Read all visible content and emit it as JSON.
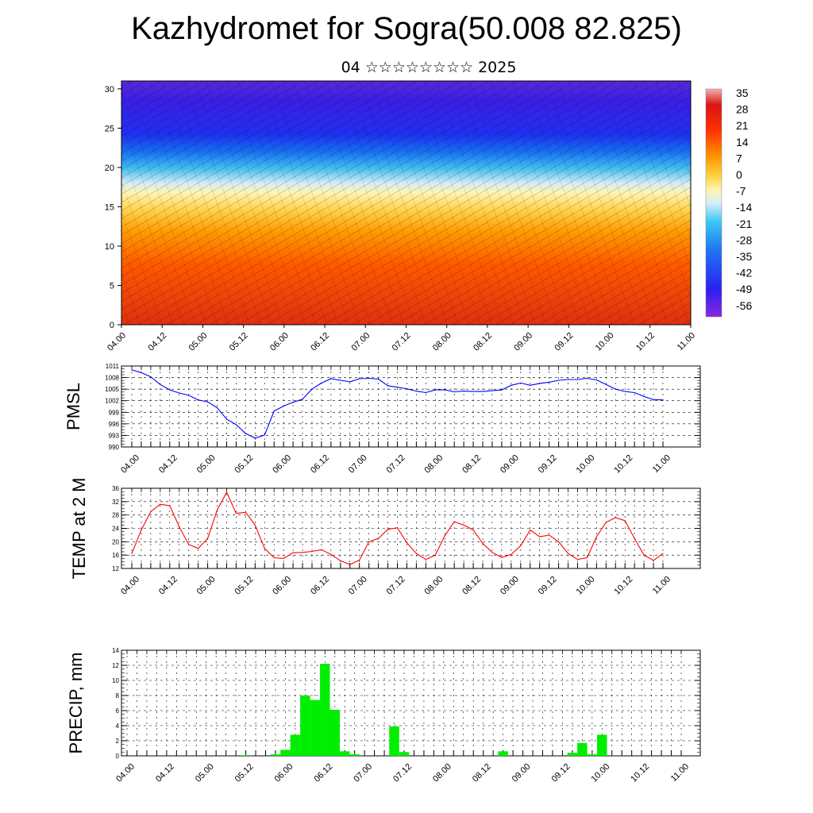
{
  "title": "Kazhydromet for Sogra(50.008 82.825)",
  "subtitle": "04 ☆☆☆☆☆☆☆☆ 2025",
  "time_labels": [
    "04.00",
    "04.12",
    "05.00",
    "05.12",
    "06.00",
    "06.12",
    "07.00",
    "07.12",
    "08.00",
    "08.12",
    "09.00",
    "09.12",
    "10.00",
    "10.12",
    "11.00"
  ],
  "chart_data": [
    {
      "type": "heatmap",
      "name": "cross-section",
      "y_ticks": [
        0,
        5,
        10,
        15,
        20,
        25,
        30
      ],
      "ylim": [
        0,
        31
      ],
      "colorbar": {
        "labels": [
          "35",
          "28",
          "21",
          "14",
          "7",
          "0",
          "-7",
          "-14",
          "-21",
          "-28",
          "-35",
          "-42",
          "-49",
          "-56"
        ],
        "values": [
          35,
          28,
          21,
          14,
          7,
          0,
          -7,
          -14,
          -21,
          -28,
          -35,
          -42,
          -49,
          -56
        ]
      },
      "note_levels": {
        "values": [
          0,
          5,
          10,
          15,
          20,
          25,
          30
        ]
      }
    },
    {
      "type": "line",
      "ylabel": "PMSL",
      "ylim": [
        990,
        1011
      ],
      "y_ticks": [
        990,
        993,
        996,
        999,
        1002,
        1005,
        1008,
        1011
      ],
      "x": [
        0,
        3,
        6,
        9,
        12,
        15,
        18,
        21,
        24,
        27,
        30,
        33,
        36,
        39,
        42,
        45,
        48,
        51,
        54,
        57,
        60,
        63,
        66,
        69,
        72,
        75,
        78,
        81,
        84,
        87,
        90,
        93,
        96,
        99,
        102,
        105,
        108,
        111,
        114,
        117,
        120,
        123,
        126,
        129,
        132,
        135,
        138,
        141,
        144,
        147,
        150,
        153,
        156,
        159,
        162,
        165,
        168
      ],
      "values": [
        1010,
        1009.3,
        1008.2,
        1006.2,
        1004.8,
        1004,
        1003.4,
        1002.2,
        1001.7,
        1000.2,
        997.2,
        995.8,
        993.5,
        992.3,
        993.1,
        999.3,
        1000.6,
        1001.6,
        1002.4,
        1005,
        1006.6,
        1007.7,
        1007.3,
        1006.9,
        1007.7,
        1007.8,
        1007.6,
        1005.9,
        1005.5,
        1005.1,
        1004.5,
        1004.1,
        1004.8,
        1004.8,
        1004.3,
        1004.5,
        1004.4,
        1004.4,
        1004.6,
        1004.8,
        1006,
        1006.6,
        1006,
        1006.5,
        1006.8,
        1007.3,
        1007.5,
        1007.5,
        1007.8,
        1007.4,
        1006.2,
        1005,
        1004.4,
        1004.1,
        1003.1,
        1002.3,
        1002.2
      ],
      "color": "#0000ff"
    },
    {
      "type": "line",
      "ylabel": "TEMP at 2 M",
      "ylim": [
        12,
        36
      ],
      "y_ticks": [
        12,
        16,
        20,
        24,
        28,
        32,
        36
      ],
      "x": [
        0,
        3,
        6,
        9,
        12,
        15,
        18,
        21,
        24,
        27,
        30,
        33,
        36,
        39,
        42,
        45,
        48,
        51,
        54,
        57,
        60,
        63,
        66,
        69,
        72,
        75,
        78,
        81,
        84,
        87,
        90,
        93,
        96,
        99,
        102,
        105,
        108,
        111,
        114,
        117,
        120,
        123,
        126,
        129,
        132,
        135,
        138,
        141,
        144,
        147,
        150,
        153,
        156,
        159,
        162,
        165,
        168
      ],
      "values": [
        16.5,
        23.5,
        29,
        31.2,
        30.8,
        24.5,
        19.2,
        18,
        21,
        29.5,
        34.8,
        28.5,
        28.8,
        25,
        18,
        15.2,
        15,
        16.7,
        16.8,
        17.1,
        17.6,
        16.2,
        14.3,
        13.2,
        14.5,
        20,
        21,
        23.7,
        24.2,
        19.7,
        16.5,
        14.7,
        16,
        21.8,
        26,
        25,
        23.5,
        19.5,
        16.8,
        15.3,
        16.2,
        18.8,
        23.5,
        21.5,
        22,
        20,
        16.5,
        14.7,
        15.2,
        21.5,
        25.8,
        27.2,
        26.3,
        21,
        16,
        14.4,
        16.5
      ],
      "color": "#ff0000"
    },
    {
      "type": "bar",
      "ylabel": "PRECIP, mm",
      "ylim": [
        0,
        14
      ],
      "y_ticks": [
        0,
        2,
        4,
        6,
        8,
        10,
        12,
        14
      ],
      "x": [
        0,
        3,
        6,
        9,
        12,
        15,
        18,
        21,
        24,
        27,
        30,
        33,
        36,
        39,
        42,
        45,
        48,
        51,
        54,
        57,
        60,
        63,
        66,
        69,
        72,
        75,
        78,
        81,
        84,
        87,
        90,
        93,
        96,
        99,
        102,
        105,
        108,
        111,
        114,
        117,
        120,
        123,
        126,
        129,
        132,
        135,
        138,
        141,
        144,
        147,
        150,
        153,
        156,
        159,
        162,
        165,
        168
      ],
      "values": [
        0,
        0,
        0,
        0,
        0,
        0,
        0,
        0,
        0,
        0,
        0,
        0,
        0.1,
        0,
        0,
        0.2,
        0.8,
        2.8,
        8,
        7.4,
        12.2,
        6.1,
        0.6,
        0.2,
        0,
        0,
        0,
        3.9,
        0.5,
        0,
        0,
        0,
        0,
        0,
        0,
        0,
        0,
        0,
        0.6,
        0,
        0,
        0,
        0,
        0,
        0,
        0.4,
        1.7,
        0.2,
        2.8,
        0,
        0,
        0,
        0,
        0,
        0,
        0,
        0
      ],
      "color": "#00ee00"
    }
  ]
}
